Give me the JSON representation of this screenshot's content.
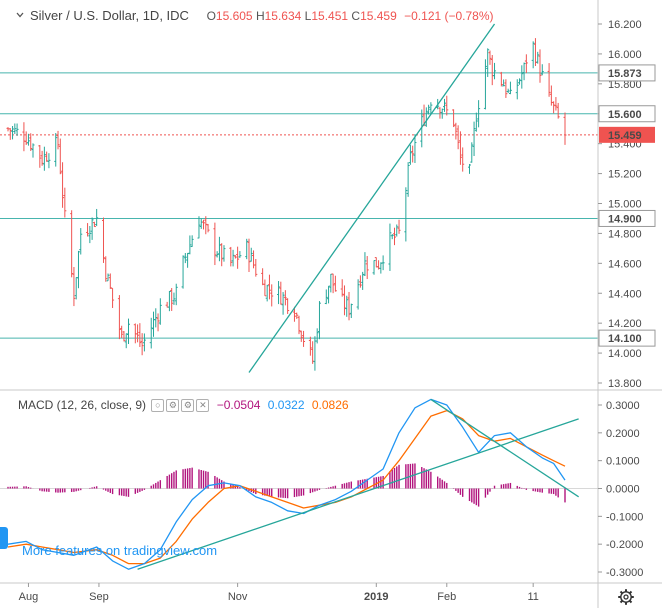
{
  "header": {
    "symbol": "Silver / U.S. Dollar, 1D, IDC",
    "open_key": "O",
    "open": "15.605",
    "high_key": "H",
    "high": "15.634",
    "low_key": "L",
    "low": "15.451",
    "close_key": "C",
    "close": "15.459",
    "change": "−0.121 (−0.78%)"
  },
  "macd_header": {
    "label": "MACD (12, 26, close, 9)",
    "histogram": "−0.0504",
    "macd": "0.0322",
    "signal": "0.0826"
  },
  "footer": {
    "more_features": "More features on tradingview.com",
    "settings_icon": "gear-icon"
  },
  "colors": {
    "up": "#26a69a",
    "down": "#ef5350",
    "trendline": "#26a69a",
    "macd": "#2196f3",
    "signal": "#ff6d00",
    "histogram": "#b2157e",
    "level_line": "#47b5ae",
    "price_label": "#ef5350"
  },
  "chart_data": [
    {
      "type": "candlestick",
      "title": "Silver / U.S. Dollar, 1D, IDC",
      "y_ticks": [
        "13.800",
        "14.000",
        "14.200",
        "14.400",
        "14.600",
        "14.800",
        "15.000",
        "15.200",
        "15.400",
        "15.600",
        "15.800",
        "16.000",
        "16.200"
      ],
      "ylim": [
        13.75,
        16.28
      ],
      "x_ticks": [
        "Aug",
        "Sep",
        "Nov",
        "2019",
        "Feb",
        "11"
      ],
      "horizontal_levels": [
        15.873,
        15.6,
        14.9,
        14.1
      ],
      "last_price": 15.459,
      "support_trendline": [
        [
          "2018-11-06",
          13.87
        ],
        [
          "2019-02-22",
          16.2
        ]
      ],
      "price_path": [
        [
          "2018-07-23",
          15.5
        ],
        [
          "2018-07-31",
          15.45
        ],
        [
          "2018-08-07",
          15.3
        ],
        [
          "2018-08-14",
          15.4
        ],
        [
          "2018-08-17",
          14.9
        ],
        [
          "2018-08-21",
          14.4
        ],
        [
          "2018-08-24",
          14.8
        ],
        [
          "2018-08-31",
          14.9
        ],
        [
          "2018-09-04",
          14.55
        ],
        [
          "2018-09-11",
          14.1
        ],
        [
          "2018-09-14",
          14.2
        ],
        [
          "2018-09-20",
          14.05
        ],
        [
          "2018-09-28",
          14.3
        ],
        [
          "2018-10-05",
          14.4
        ],
        [
          "2018-10-08",
          14.6
        ],
        [
          "2018-10-15",
          14.9
        ],
        [
          "2018-10-22",
          14.7
        ],
        [
          "2018-10-29",
          14.6
        ],
        [
          "2018-11-05",
          14.7
        ],
        [
          "2018-11-12",
          14.45
        ],
        [
          "2018-11-19",
          14.4
        ],
        [
          "2018-11-26",
          14.3
        ],
        [
          "2018-11-30",
          14.1
        ],
        [
          "2018-12-04",
          13.95
        ],
        [
          "2018-12-07",
          14.3
        ],
        [
          "2018-12-12",
          14.5
        ],
        [
          "2018-12-16",
          14.35
        ],
        [
          "2018-12-20",
          14.3
        ],
        [
          "2018-12-27",
          14.6
        ],
        [
          "2019-01-02",
          14.6
        ],
        [
          "2019-01-07",
          14.75
        ],
        [
          "2019-01-11",
          14.8
        ],
        [
          "2019-01-16",
          15.3
        ],
        [
          "2019-01-20",
          15.5
        ],
        [
          "2019-01-25",
          15.7
        ],
        [
          "2019-01-30",
          15.65
        ],
        [
          "2019-02-04",
          15.55
        ],
        [
          "2019-02-07",
          15.3
        ],
        [
          "2019-02-11",
          15.2
        ],
        [
          "2019-02-14",
          15.6
        ],
        [
          "2019-02-19",
          16.0
        ],
        [
          "2019-02-21",
          15.9
        ],
        [
          "2019-02-26",
          15.8
        ],
        [
          "2019-03-01",
          15.7
        ],
        [
          "2019-03-04",
          15.8
        ],
        [
          "2019-03-07",
          15.9
        ],
        [
          "2019-03-10",
          16.1
        ],
        [
          "2019-03-14",
          15.9
        ],
        [
          "2019-03-18",
          15.7
        ],
        [
          "2019-03-21",
          15.6
        ],
        [
          "2019-03-25",
          15.459
        ]
      ]
    },
    {
      "type": "line",
      "title": "MACD (12, 26, close, 9)",
      "y_ticks": [
        "-0.3000",
        "-0.2000",
        "-0.1000",
        "0.0000",
        "0.1000",
        "0.2000",
        "0.3000"
      ],
      "ylim": [
        -0.32,
        0.33
      ],
      "series": [
        {
          "name": "MACD",
          "points": [
            [
              "2018-07-23",
              -0.2
            ],
            [
              "2018-07-31",
              -0.19
            ],
            [
              "2018-08-07",
              -0.22
            ],
            [
              "2018-08-14",
              -0.23
            ],
            [
              "2018-08-21",
              -0.24
            ],
            [
              "2018-08-31",
              -0.21
            ],
            [
              "2018-09-07",
              -0.26
            ],
            [
              "2018-09-14",
              -0.29
            ],
            [
              "2018-09-21",
              -0.27
            ],
            [
              "2018-09-28",
              -0.22
            ],
            [
              "2018-10-05",
              -0.12
            ],
            [
              "2018-10-12",
              -0.04
            ],
            [
              "2018-10-19",
              0.01
            ],
            [
              "2018-10-26",
              0.02
            ],
            [
              "2018-11-02",
              0.01
            ],
            [
              "2018-11-09",
              -0.03
            ],
            [
              "2018-11-16",
              -0.05
            ],
            [
              "2018-11-23",
              -0.08
            ],
            [
              "2018-11-30",
              -0.09
            ],
            [
              "2018-12-07",
              -0.06
            ],
            [
              "2018-12-14",
              -0.04
            ],
            [
              "2018-12-21",
              -0.01
            ],
            [
              "2018-12-28",
              0.03
            ],
            [
              "2019-01-04",
              0.07
            ],
            [
              "2019-01-11",
              0.2
            ],
            [
              "2019-01-18",
              0.29
            ],
            [
              "2019-01-25",
              0.32
            ],
            [
              "2019-02-01",
              0.3
            ],
            [
              "2019-02-08",
              0.22
            ],
            [
              "2019-02-15",
              0.13
            ],
            [
              "2019-02-22",
              0.19
            ],
            [
              "2019-03-01",
              0.2
            ],
            [
              "2019-03-08",
              0.15
            ],
            [
              "2019-03-15",
              0.11
            ],
            [
              "2019-03-20",
              0.09
            ],
            [
              "2019-03-25",
              0.03
            ]
          ]
        },
        {
          "name": "Signal",
          "points": [
            [
              "2018-07-23",
              -0.21
            ],
            [
              "2018-07-31",
              -0.2
            ],
            [
              "2018-08-07",
              -0.21
            ],
            [
              "2018-08-14",
              -0.22
            ],
            [
              "2018-08-21",
              -0.23
            ],
            [
              "2018-08-31",
              -0.22
            ],
            [
              "2018-09-07",
              -0.24
            ],
            [
              "2018-09-14",
              -0.27
            ],
            [
              "2018-09-21",
              -0.27
            ],
            [
              "2018-09-28",
              -0.25
            ],
            [
              "2018-10-05",
              -0.19
            ],
            [
              "2018-10-12",
              -0.11
            ],
            [
              "2018-10-19",
              -0.05
            ],
            [
              "2018-10-26",
              0.0
            ],
            [
              "2018-11-02",
              0.01
            ],
            [
              "2018-11-09",
              -0.01
            ],
            [
              "2018-11-16",
              -0.03
            ],
            [
              "2018-11-23",
              -0.05
            ],
            [
              "2018-11-30",
              -0.07
            ],
            [
              "2018-12-07",
              -0.06
            ],
            [
              "2018-12-14",
              -0.05
            ],
            [
              "2018-12-21",
              -0.03
            ],
            [
              "2018-12-28",
              0.0
            ],
            [
              "2019-01-04",
              0.03
            ],
            [
              "2019-01-11",
              0.1
            ],
            [
              "2019-01-18",
              0.18
            ],
            [
              "2019-01-25",
              0.26
            ],
            [
              "2019-02-01",
              0.28
            ],
            [
              "2019-02-08",
              0.25
            ],
            [
              "2019-02-15",
              0.19
            ],
            [
              "2019-02-22",
              0.17
            ],
            [
              "2019-03-01",
              0.18
            ],
            [
              "2019-03-08",
              0.15
            ],
            [
              "2019-03-15",
              0.12
            ],
            [
              "2019-03-20",
              0.1
            ],
            [
              "2019-03-25",
              0.08
            ]
          ]
        },
        {
          "name": "Histogram",
          "points": [
            [
              "2018-07-23",
              0.006
            ],
            [
              "2018-07-31",
              0.008
            ],
            [
              "2018-08-07",
              -0.01
            ],
            [
              "2018-08-14",
              -0.015
            ],
            [
              "2018-08-21",
              -0.012
            ],
            [
              "2018-08-31",
              0.008
            ],
            [
              "2018-09-07",
              -0.02
            ],
            [
              "2018-09-14",
              -0.03
            ],
            [
              "2018-09-21",
              -0.005
            ],
            [
              "2018-09-28",
              0.03
            ],
            [
              "2018-10-05",
              0.065
            ],
            [
              "2018-10-12",
              0.075
            ],
            [
              "2018-10-19",
              0.06
            ],
            [
              "2018-10-26",
              0.025
            ],
            [
              "2018-11-02",
              0.005
            ],
            [
              "2018-11-09",
              -0.02
            ],
            [
              "2018-11-16",
              -0.03
            ],
            [
              "2018-11-23",
              -0.035
            ],
            [
              "2018-11-30",
              -0.025
            ],
            [
              "2018-12-07",
              -0.005
            ],
            [
              "2018-12-14",
              0.01
            ],
            [
              "2018-12-21",
              0.025
            ],
            [
              "2018-12-28",
              0.035
            ],
            [
              "2019-01-04",
              0.045
            ],
            [
              "2019-01-11",
              0.085
            ],
            [
              "2019-01-18",
              0.09
            ],
            [
              "2019-01-25",
              0.06
            ],
            [
              "2019-02-01",
              0.02
            ],
            [
              "2019-02-08",
              -0.03
            ],
            [
              "2019-02-15",
              -0.065
            ],
            [
              "2019-02-22",
              0.01
            ],
            [
              "2019-03-01",
              0.02
            ],
            [
              "2019-03-08",
              -0.005
            ],
            [
              "2019-03-15",
              -0.015
            ],
            [
              "2019-03-20",
              -0.02
            ],
            [
              "2019-03-25",
              -0.05
            ]
          ]
        }
      ],
      "trendlines": [
        [
          [
            "2018-09-18",
            -0.29
          ],
          [
            "2019-03-31",
            0.25
          ]
        ],
        [
          [
            "2019-01-25",
            0.32
          ],
          [
            "2019-03-31",
            -0.03
          ]
        ]
      ]
    }
  ]
}
